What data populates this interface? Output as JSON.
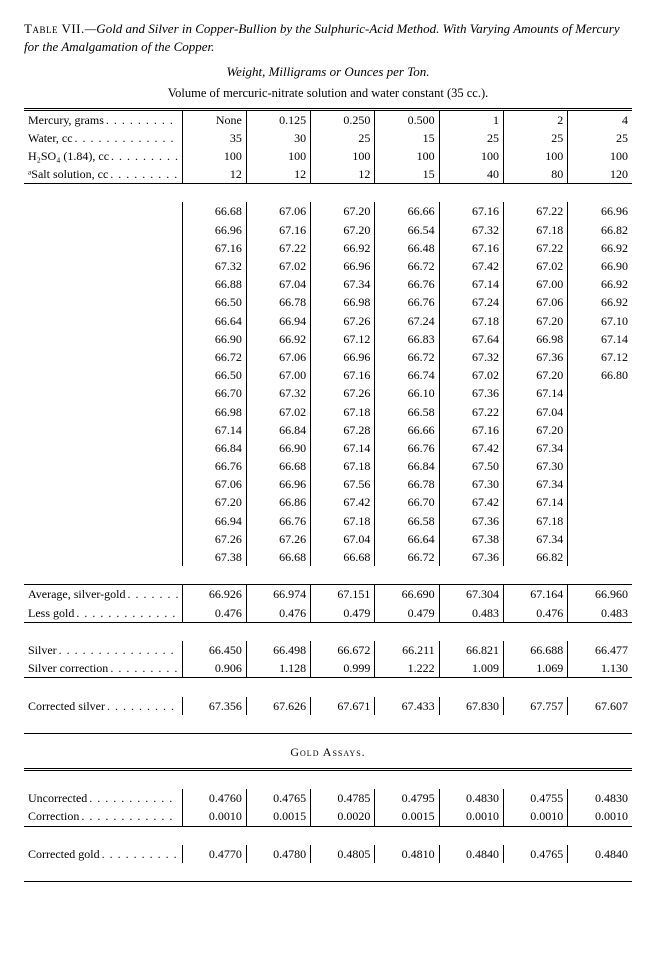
{
  "title": {
    "label": "Table VII.",
    "rest": "—Gold and Silver in Copper-Bullion by the Sulphuric-Acid Method. With Varying Amounts of Mercury for the Amalgamation of the Copper."
  },
  "subtitle": "Weight, Milligrams or Ounces per Ton.",
  "volline": "Volume of mercuric-nitrate solution and water constant (35 cc.).",
  "header": {
    "rows": [
      {
        "label": "Mercury, grams",
        "vals": [
          "None",
          "0.125",
          "0.250",
          "0.500",
          "1",
          "2",
          "4"
        ]
      },
      {
        "label": "Water, cc",
        "vals": [
          "35",
          "30",
          "25",
          "15",
          "25",
          "25",
          "25"
        ]
      },
      {
        "label": "H₂SO₄ (1.84), cc",
        "vals": [
          "100",
          "100",
          "100",
          "100",
          "100",
          "100",
          "100"
        ]
      },
      {
        "label": "ᵃSalt solution, cc",
        "vals": [
          "12",
          "12",
          "12",
          "15",
          "40",
          "80",
          "120"
        ]
      }
    ]
  },
  "body_rows": [
    [
      "66.68",
      "67.06",
      "67.20",
      "66.66",
      "67.16",
      "67.22",
      "66.96"
    ],
    [
      "66.96",
      "67.16",
      "67.20",
      "66.54",
      "67.32",
      "67.18",
      "66.82"
    ],
    [
      "67.16",
      "67.22",
      "66.92",
      "66.48",
      "67.16",
      "67.22",
      "66.92"
    ],
    [
      "67.32",
      "67.02",
      "66.96",
      "66.72",
      "67.42",
      "67.02",
      "66.90"
    ],
    [
      "66.88",
      "67.04",
      "67.34",
      "66.76",
      "67.14",
      "67.00",
      "66.92"
    ],
    [
      "66.50",
      "66.78",
      "66.98",
      "66.76",
      "67.24",
      "67.06",
      "66.92"
    ],
    [
      "66.64",
      "66.94",
      "67.26",
      "67.24",
      "67.18",
      "67.20",
      "67.10"
    ],
    [
      "66.90",
      "66.92",
      "67.12",
      "66.83",
      "67.64",
      "66.98",
      "67.14"
    ],
    [
      "66.72",
      "67.06",
      "66.96",
      "66.72",
      "67.32",
      "67.36",
      "67.12"
    ],
    [
      "66.50",
      "67.00",
      "67.16",
      "66.74",
      "67.02",
      "67.20",
      "66.80"
    ],
    [
      "66.70",
      "67.32",
      "67.26",
      "66.10",
      "67.36",
      "67.14",
      ""
    ],
    [
      "66.98",
      "67.02",
      "67.18",
      "66.58",
      "67.22",
      "67.04",
      ""
    ],
    [
      "67.14",
      "66.84",
      "67.28",
      "66.66",
      "67.16",
      "67.20",
      ""
    ],
    [
      "66.84",
      "66.90",
      "67.14",
      "66.76",
      "67.42",
      "67.34",
      ""
    ],
    [
      "66.76",
      "66.68",
      "67.18",
      "66.84",
      "67.50",
      "67.30",
      ""
    ],
    [
      "67.06",
      "66.96",
      "67.56",
      "66.78",
      "67.30",
      "67.34",
      ""
    ],
    [
      "67.20",
      "66.86",
      "67.42",
      "66.70",
      "67.42",
      "67.14",
      ""
    ],
    [
      "66.94",
      "66.76",
      "67.18",
      "66.58",
      "67.36",
      "67.18",
      ""
    ],
    [
      "67.26",
      "67.26",
      "67.04",
      "66.64",
      "67.38",
      "67.34",
      ""
    ],
    [
      "67.38",
      "66.68",
      "66.68",
      "66.72",
      "67.36",
      "66.82",
      ""
    ]
  ],
  "summary": [
    {
      "label": "Average, silver-gold",
      "vals": [
        "66.926",
        "66.974",
        "67.151",
        "66.690",
        "67.304",
        "67.164",
        "66.960"
      ]
    },
    {
      "label": "Less gold",
      "vals": [
        "0.476",
        "0.476",
        "0.479",
        "0.479",
        "0.483",
        "0.476",
        "0.483"
      ]
    }
  ],
  "silver": [
    {
      "label": "Silver",
      "vals": [
        "66.450",
        "66.498",
        "66.672",
        "66.211",
        "66.821",
        "66.688",
        "66.477"
      ]
    },
    {
      "label": "Silver correction",
      "vals": [
        "0.906",
        "1.128",
        "0.999",
        "1.222",
        "1.009",
        "1.069",
        "1.130"
      ]
    }
  ],
  "corrected_silver": {
    "label": "Corrected silver",
    "vals": [
      "67.356",
      "67.626",
      "67.671",
      "67.433",
      "67.830",
      "67.757",
      "67.607"
    ]
  },
  "gold_title": "Gold Assays.",
  "gold": [
    {
      "label": "Uncorrected",
      "vals": [
        "0.4760",
        "0.4765",
        "0.4785",
        "0.4795",
        "0.4830",
        "0.4755",
        "0.4830"
      ]
    },
    {
      "label": "Correction",
      "vals": [
        "0.0010",
        "0.0015",
        "0.0020",
        "0.0015",
        "0.0010",
        "0.0010",
        "0.0010"
      ]
    }
  ],
  "corrected_gold": {
    "label": "Corrected gold",
    "vals": [
      "0.4770",
      "0.4780",
      "0.4805",
      "0.4810",
      "0.4840",
      "0.4765",
      "0.4840"
    ]
  }
}
